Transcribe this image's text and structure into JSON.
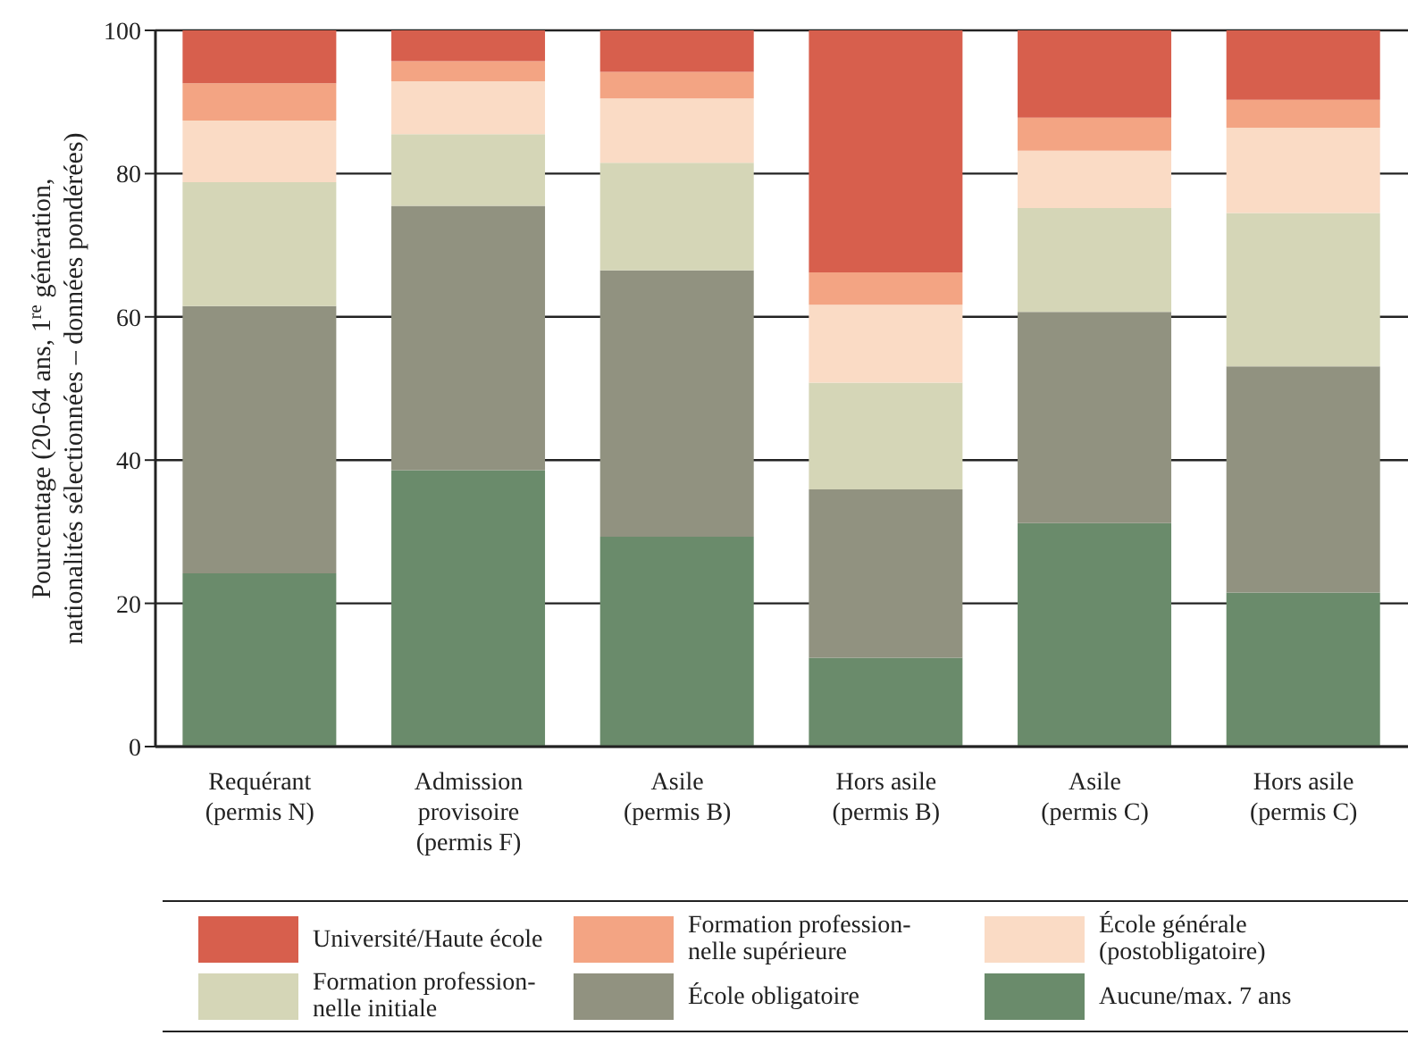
{
  "chart_data": {
    "type": "bar",
    "stacked": true,
    "ylabel": "Pourcentage (20-64 ans, 1$^{re}$ génération,\nnationalités sélectionnées – données pondérées)",
    "categories": [
      "Requérant\n(permis N)",
      "Admission\nprovisoire\n(permis F)",
      "Asile\n(permis B)",
      "Hors asile\n(permis B)",
      "Asile\n(permis C)",
      "Hors asile\n(permis C)"
    ],
    "series": [
      {
        "name": "Aucune/max. 7 ans",
        "color": "#6a8b6b",
        "values": [
          24.2,
          38.6,
          29.3,
          12.4,
          31.2,
          21.5
        ]
      },
      {
        "name": "École obligatoire",
        "color": "#919280",
        "values": [
          37.3,
          36.9,
          37.2,
          23.5,
          29.5,
          31.6
        ]
      },
      {
        "name": "Formation profession-\nnelle initiale",
        "color": "#d5d6b7",
        "values": [
          17.3,
          10.0,
          15.0,
          14.9,
          14.5,
          21.4
        ]
      },
      {
        "name": "École générale\n(postobligatoire)",
        "color": "#fadbc5",
        "values": [
          8.6,
          7.4,
          9.0,
          10.9,
          8.0,
          11.9
        ]
      },
      {
        "name": "Formation profession-\nnelle supérieure",
        "color": "#f3a483",
        "values": [
          5.2,
          2.8,
          3.7,
          4.5,
          4.6,
          3.9
        ]
      },
      {
        "name": "Université/Haute école",
        "color": "#d75f4d",
        "values": [
          7.4,
          4.3,
          5.8,
          33.8,
          12.2,
          9.7
        ]
      }
    ],
    "ylim": [
      0,
      100
    ],
    "yticks": [
      0,
      20,
      40,
      60,
      80,
      100
    ],
    "grid": "y",
    "legend": "bottom"
  }
}
